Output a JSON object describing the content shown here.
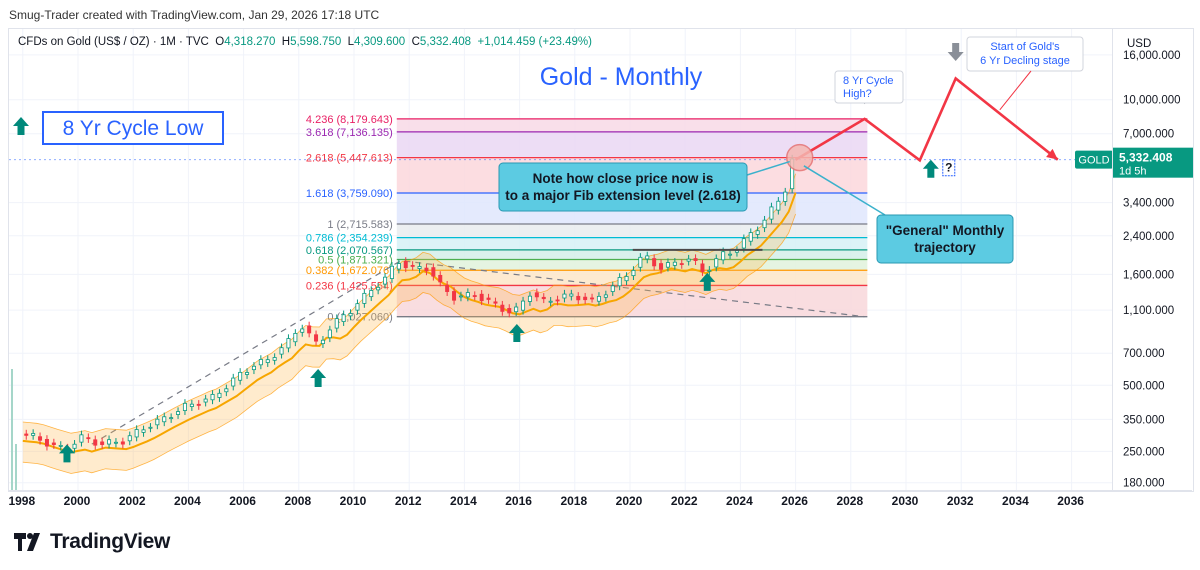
{
  "header": {
    "attribution": "Smug-Trader created with TradingView.com, Jan 29, 2026 17:18 UTC"
  },
  "legend": {
    "symbol": "CFDs on Gold (US$ / OZ) · 1M · TVC",
    "o_label": "O",
    "o": "4,318.270",
    "h_label": "H",
    "h": "5,598.750",
    "l_label": "L",
    "l": "4,309.600",
    "c_label": "C",
    "c": "5,332.408",
    "change": "+1,014.459 (+23.49%)"
  },
  "price_axis": {
    "currency": "USD",
    "ticks": [
      "16,000.000",
      "10,000.000",
      "7,000.000",
      "3,400.000",
      "2,400.000",
      "1,600.000",
      "1,100.000",
      "700.000",
      "500.000",
      "350.000",
      "250.000",
      "180.000"
    ],
    "symbol_tag": "GOLD",
    "last_price": "5,332.408",
    "countdown": "1d 5h"
  },
  "time_axis": {
    "ticks": [
      "1998",
      "2000",
      "2002",
      "2004",
      "2006",
      "2008",
      "2010",
      "2012",
      "2014",
      "2016",
      "2018",
      "2020",
      "2022",
      "2024",
      "2026",
      "2028",
      "2030",
      "2032",
      "2034",
      "2036"
    ]
  },
  "annotations": {
    "title": "Gold - Monthly",
    "cycle_low": "8 Yr Cycle Low",
    "note": "Note how close price now is to a major Fib extension level (2.618)",
    "trajectory": "\"General\" Monthly trajectory",
    "cycle_high": "8 Yr Cycle High?",
    "decline": "Start of Gold's 6 Yr Decling stage",
    "question": "?"
  },
  "colors": {
    "up": "#089981",
    "down": "#f23645",
    "accent_blue": "#2962ff",
    "trajectory": "#f23645",
    "callout": "#5ccbe2"
  },
  "brand": {
    "name": "TradingView"
  },
  "chart_data": {
    "type": "candlestick",
    "title": "Gold - Monthly",
    "scale": "log",
    "ylim": [
      165,
      21000
    ],
    "xlim": [
      1997.5,
      2037.5
    ],
    "fib_levels": [
      {
        "ratio": "0",
        "price": "1,027.060",
        "value": 1027.06,
        "color": "#787b86"
      },
      {
        "ratio": "0.236",
        "price": "1,425.554",
        "value": 1425.55,
        "color": "#f23645"
      },
      {
        "ratio": "0.382",
        "price": "1,672.076",
        "value": 1672.08,
        "color": "#ff9800"
      },
      {
        "ratio": "0.5",
        "price": "1,871.321",
        "value": 1871.32,
        "color": "#4caf50"
      },
      {
        "ratio": "0.618",
        "price": "2,070.567",
        "value": 2070.57,
        "color": "#089981"
      },
      {
        "ratio": "0.786",
        "price": "2,354.239",
        "value": 2354.24,
        "color": "#00bcd4"
      },
      {
        "ratio": "1",
        "price": "2,715.583",
        "value": 2715.58,
        "color": "#787b86"
      },
      {
        "ratio": "1.618",
        "price": "3,759.090",
        "value": 3759.09,
        "color": "#2962ff"
      },
      {
        "ratio": "2.618",
        "price": "5,447.613",
        "value": 5447.61,
        "color": "#f23645"
      },
      {
        "ratio": "3.618",
        "price": "7,136.135",
        "value": 7136.14,
        "color": "#9c27b0"
      },
      {
        "ratio": "4.236",
        "price": "8,179.643",
        "value": 8179.64,
        "color": "#e91e63"
      }
    ],
    "price_path": [
      [
        1998.0,
        300
      ],
      [
        1998.6,
        290
      ],
      [
        1999.2,
        265
      ],
      [
        1999.7,
        255
      ],
      [
        2000.2,
        290
      ],
      [
        2001.0,
        270
      ],
      [
        2001.8,
        280
      ],
      [
        2002.5,
        320
      ],
      [
        2003.2,
        350
      ],
      [
        2004.0,
        400
      ],
      [
        2005.0,
        440
      ],
      [
        2006.0,
        560
      ],
      [
        2006.5,
        620
      ],
      [
        2007.0,
        650
      ],
      [
        2007.8,
        800
      ],
      [
        2008.2,
        950
      ],
      [
        2008.8,
        760
      ],
      [
        2009.3,
        930
      ],
      [
        2010.0,
        1100
      ],
      [
        2010.8,
        1380
      ],
      [
        2011.3,
        1550
      ],
      [
        2011.7,
        1850
      ],
      [
        2012.2,
        1700
      ],
      [
        2012.8,
        1720
      ],
      [
        2013.3,
        1400
      ],
      [
        2013.8,
        1250
      ],
      [
        2014.5,
        1300
      ],
      [
        2015.0,
        1200
      ],
      [
        2015.9,
        1060
      ],
      [
        2016.5,
        1320
      ],
      [
        2017.0,
        1200
      ],
      [
        2017.8,
        1280
      ],
      [
        2018.5,
        1250
      ],
      [
        2018.8,
        1200
      ],
      [
        2019.5,
        1420
      ],
      [
        2020.0,
        1580
      ],
      [
        2020.6,
        1950
      ],
      [
        2021.2,
        1720
      ],
      [
        2021.8,
        1800
      ],
      [
        2022.3,
        1900
      ],
      [
        2022.8,
        1630
      ],
      [
        2023.4,
        1950
      ],
      [
        2023.9,
        2050
      ],
      [
        2024.3,
        2300
      ],
      [
        2024.8,
        2650
      ],
      [
        2025.3,
        3200
      ],
      [
        2025.7,
        3700
      ],
      [
        2026.0,
        5332
      ]
    ],
    "projection": [
      [
        2026.0,
        5332
      ],
      [
        2028.5,
        8179
      ],
      [
        2030.5,
        5300
      ],
      [
        2031.8,
        12500
      ],
      [
        2035.5,
        5332
      ]
    ],
    "cycle_low_markers": [
      1999.6,
      2008.7,
      2015.9,
      2022.8
    ],
    "cycle_low_marker_prices": [
      245,
      540,
      865,
      1480
    ],
    "cycle_high_markers": [
      2028.5,
      2031.8
    ],
    "cycle_high_marker_prices": [
      10500,
      16500
    ],
    "trendline": [
      [
        2000.5,
        270
      ],
      [
        2011.7,
        1850
      ],
      [
        2028.5,
        1027
      ]
    ]
  }
}
